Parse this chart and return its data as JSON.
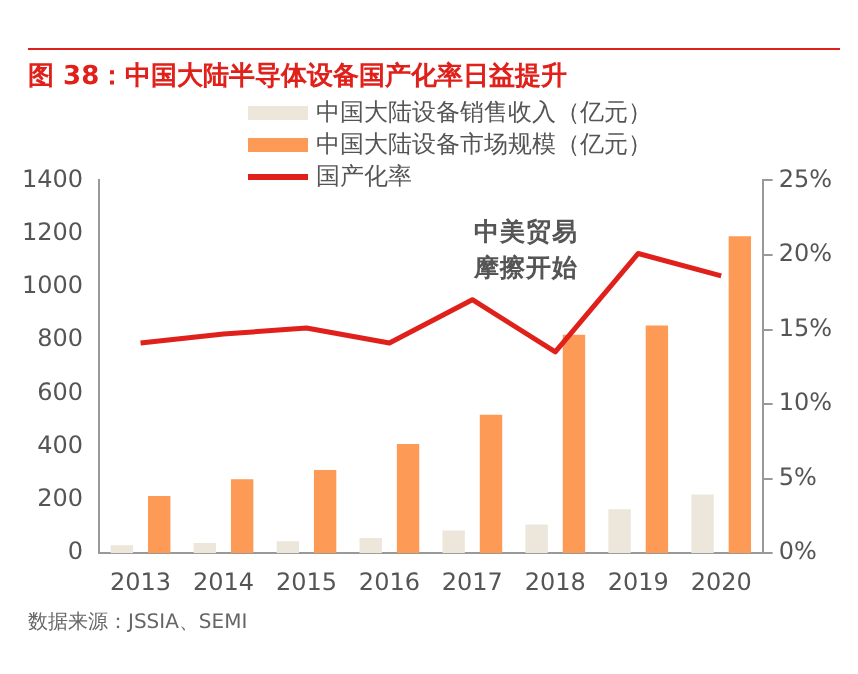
{
  "chart_data": {
    "type": "bar",
    "title": "图 38：中国大陆半导体设备国产化率日益提升",
    "categories": [
      "2013",
      "2014",
      "2015",
      "2016",
      "2017",
      "2018",
      "2019",
      "2020"
    ],
    "series": [
      {
        "name": "中国大陆设备销售收入（亿元）",
        "color": "#ede6da",
        "values": [
          30,
          38,
          45,
          57,
          85,
          108,
          165,
          220
        ]
      },
      {
        "name": "中国大陆设备市场规模（亿元）",
        "color": "#fd9a55",
        "values": [
          215,
          278,
          312,
          410,
          520,
          820,
          855,
          1190
        ]
      },
      {
        "name": "国产化率",
        "type": "line",
        "axis": "y2",
        "color": "#e0201b",
        "values": [
          14.1,
          14.7,
          15.1,
          14.1,
          17.0,
          13.5,
          20.1,
          18.6
        ]
      }
    ],
    "ylim": [
      0,
      1400
    ],
    "yticks": [
      0,
      200,
      400,
      600,
      800,
      1000,
      1200,
      1400
    ],
    "y2lim": [
      0,
      25
    ],
    "y2ticks": [
      {
        "value": 0,
        "label": "0%"
      },
      {
        "value": 5,
        "label": "5%"
      },
      {
        "value": 10,
        "label": "10%"
      },
      {
        "value": 15,
        "label": "15%"
      },
      {
        "value": 20,
        "label": "20%"
      },
      {
        "value": 25,
        "label": "25%"
      }
    ],
    "grid": false,
    "legend": "top",
    "marker": "none",
    "line_style": "solid",
    "annotations": [
      "中美贸易摩擦开始",
      "数据来源：JSSIA、SEMI"
    ]
  }
}
